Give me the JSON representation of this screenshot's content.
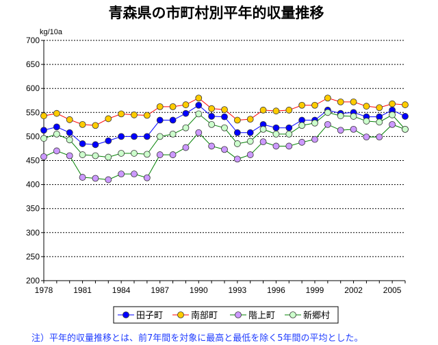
{
  "chart_data": {
    "type": "line",
    "title": "青森県の市町村別平年的収量推移",
    "ylabel": "kg/10a",
    "xlabel": "",
    "ylim": [
      200,
      700
    ],
    "yticks": [
      200,
      250,
      300,
      350,
      400,
      450,
      500,
      550,
      600,
      650,
      700
    ],
    "x": [
      1978,
      1979,
      1980,
      1981,
      1982,
      1983,
      1984,
      1985,
      1986,
      1987,
      1988,
      1989,
      1990,
      1991,
      1992,
      1993,
      1994,
      1995,
      1996,
      1997,
      1998,
      1999,
      2000,
      2001,
      2002,
      2003,
      2004,
      2005,
      2006
    ],
    "xticks": [
      1978,
      1981,
      1984,
      1987,
      1990,
      1993,
      1996,
      1999,
      2002,
      2005
    ],
    "grid": true,
    "legend_position": "bottom",
    "series": [
      {
        "name": "田子町",
        "color": "#0000ff",
        "marker": "#0000ff",
        "values": [
          513,
          520,
          508,
          485,
          483,
          491,
          500,
          500,
          500,
          534,
          534,
          548,
          565,
          542,
          541,
          508,
          508,
          525,
          518,
          518,
          534,
          534,
          555,
          548,
          550,
          541,
          541,
          555,
          542
        ]
      },
      {
        "name": "南部町",
        "color": "#ff0000",
        "marker": "#ffcc00",
        "values": [
          543,
          548,
          535,
          525,
          523,
          537,
          547,
          545,
          544,
          562,
          562,
          566,
          580,
          558,
          556,
          534,
          536,
          555,
          553,
          555,
          565,
          565,
          580,
          572,
          572,
          563,
          560,
          568,
          566
        ]
      },
      {
        "name": "階上町",
        "color": "#008000",
        "marker": "#cc99ff",
        "values": [
          458,
          470,
          460,
          415,
          413,
          410,
          422,
          422,
          414,
          462,
          462,
          477,
          508,
          480,
          473,
          453,
          462,
          489,
          480,
          480,
          488,
          494,
          525,
          513,
          515,
          499,
          499,
          525,
          515
        ]
      },
      {
        "name": "新郷村",
        "color": "#008000",
        "marker": "#ccffcc",
        "values": [
          496,
          505,
          493,
          462,
          460,
          457,
          465,
          465,
          463,
          500,
          505,
          518,
          547,
          525,
          518,
          485,
          490,
          515,
          505,
          505,
          523,
          528,
          550,
          543,
          542,
          532,
          530,
          545,
          515
        ]
      }
    ],
    "footnote": "注）平年的収量推移とは、前7年間を対象に最高と最低を除く5年間の平均とした。"
  }
}
